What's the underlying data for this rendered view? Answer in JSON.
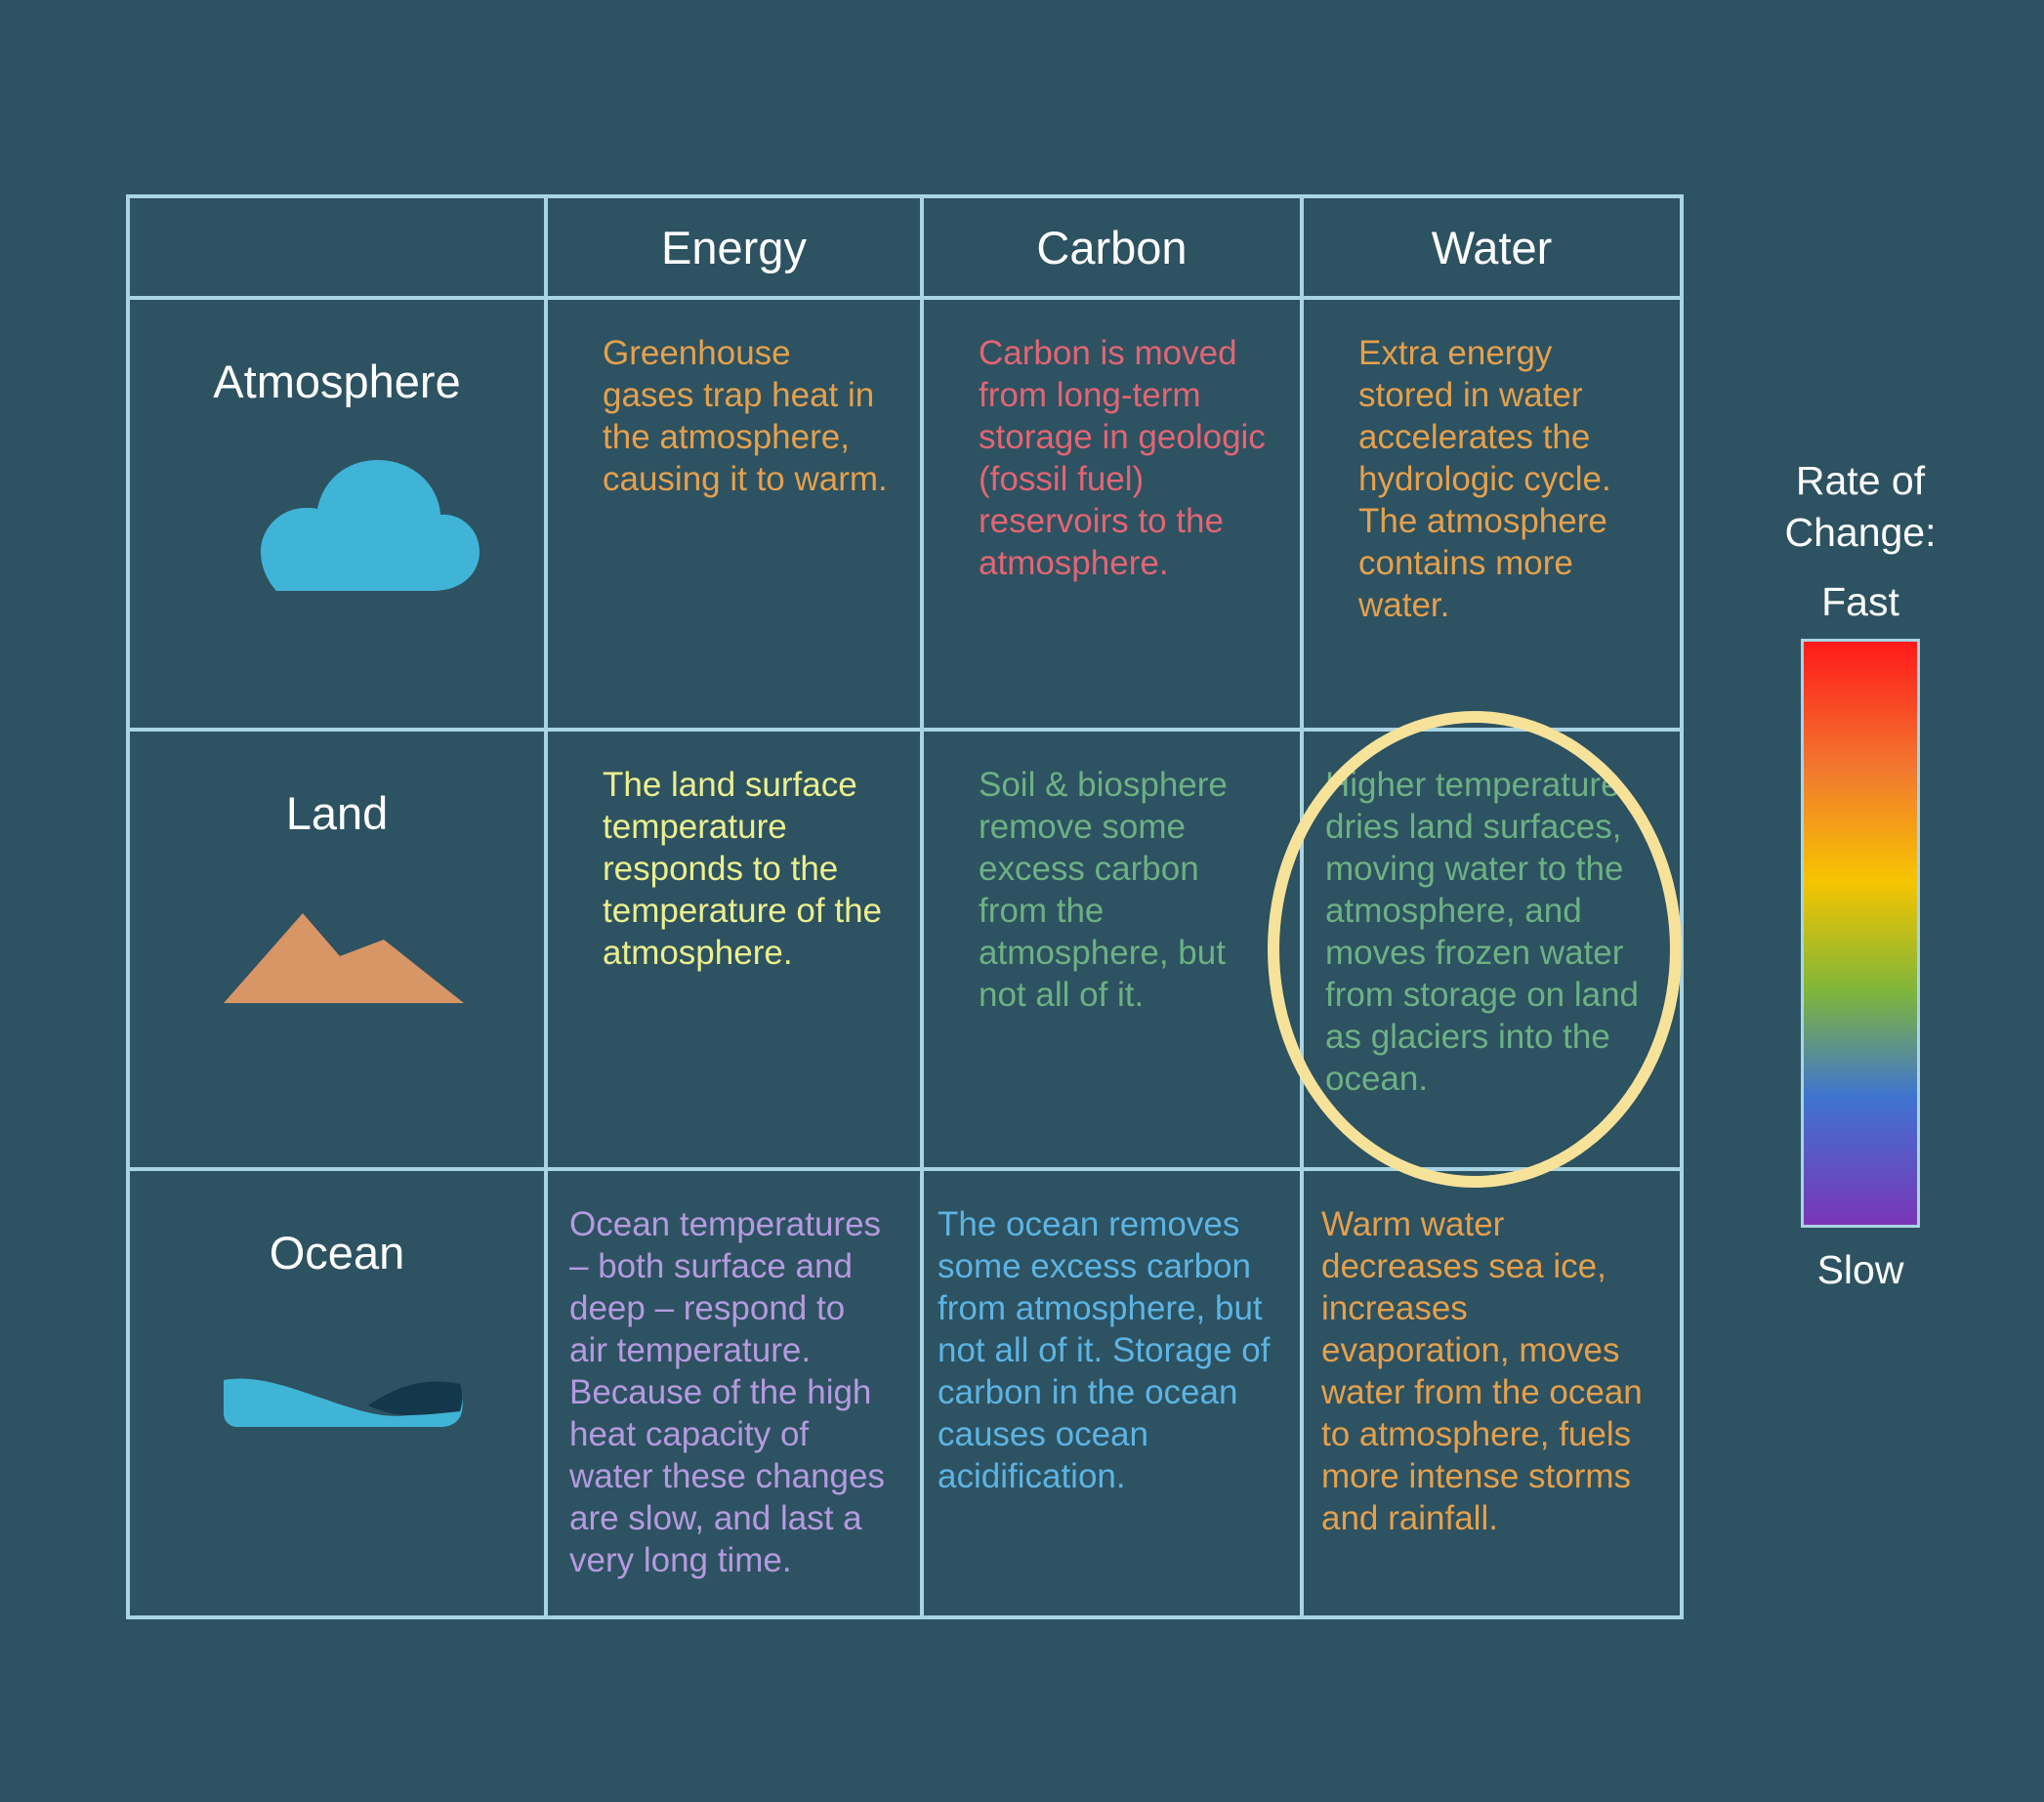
{
  "table": {
    "columns": [
      "",
      "Energy",
      "Carbon",
      "Water"
    ],
    "rows": [
      {
        "label": "Atmosphere",
        "icon": "cloud-icon",
        "cells": {
          "energy": "Greenhouse gases trap heat in the atmosphere, causing it to warm.",
          "carbon": "Carbon is moved from long-term storage in geologic (fossil fuel) reservoirs to the atmosphere.",
          "water": "Extra energy stored in water accelerates the hydrologic cycle. The atmosphere contains more water."
        }
      },
      {
        "label": "Land",
        "icon": "mountain-icon",
        "cells": {
          "energy": "The land surface temperature responds to the temperature of the atmosphere.",
          "carbon": "Soil & biosphere remove some excess carbon from the atmosphere, but not all of it.",
          "water": "Higher temperature dries land surfaces, moving water to the atmosphere, and moves frozen water from storage on land as glaciers into the ocean."
        }
      },
      {
        "label": "Ocean",
        "icon": "wave-icon",
        "cells": {
          "energy": "Ocean temperatures – both surface and deep – respond to air temperature. Because of the high heat capacity of water these changes are slow, and last a very long time.",
          "carbon": "The ocean removes some excess carbon from atmosphere, but not all of it. Storage of carbon in the ocean causes ocean acidification.",
          "water": "Warm water decreases sea ice, increases evaporation, moves water from the ocean to atmosphere, fuels more intense storms and rainfall."
        }
      }
    ]
  },
  "legend": {
    "title": "Rate of Change:",
    "top_label": "Fast",
    "bottom_label": "Slow"
  },
  "colors": {
    "background": "#2d5261",
    "grid_line": "#a9d4e4",
    "highlight": "#f7e29a"
  }
}
